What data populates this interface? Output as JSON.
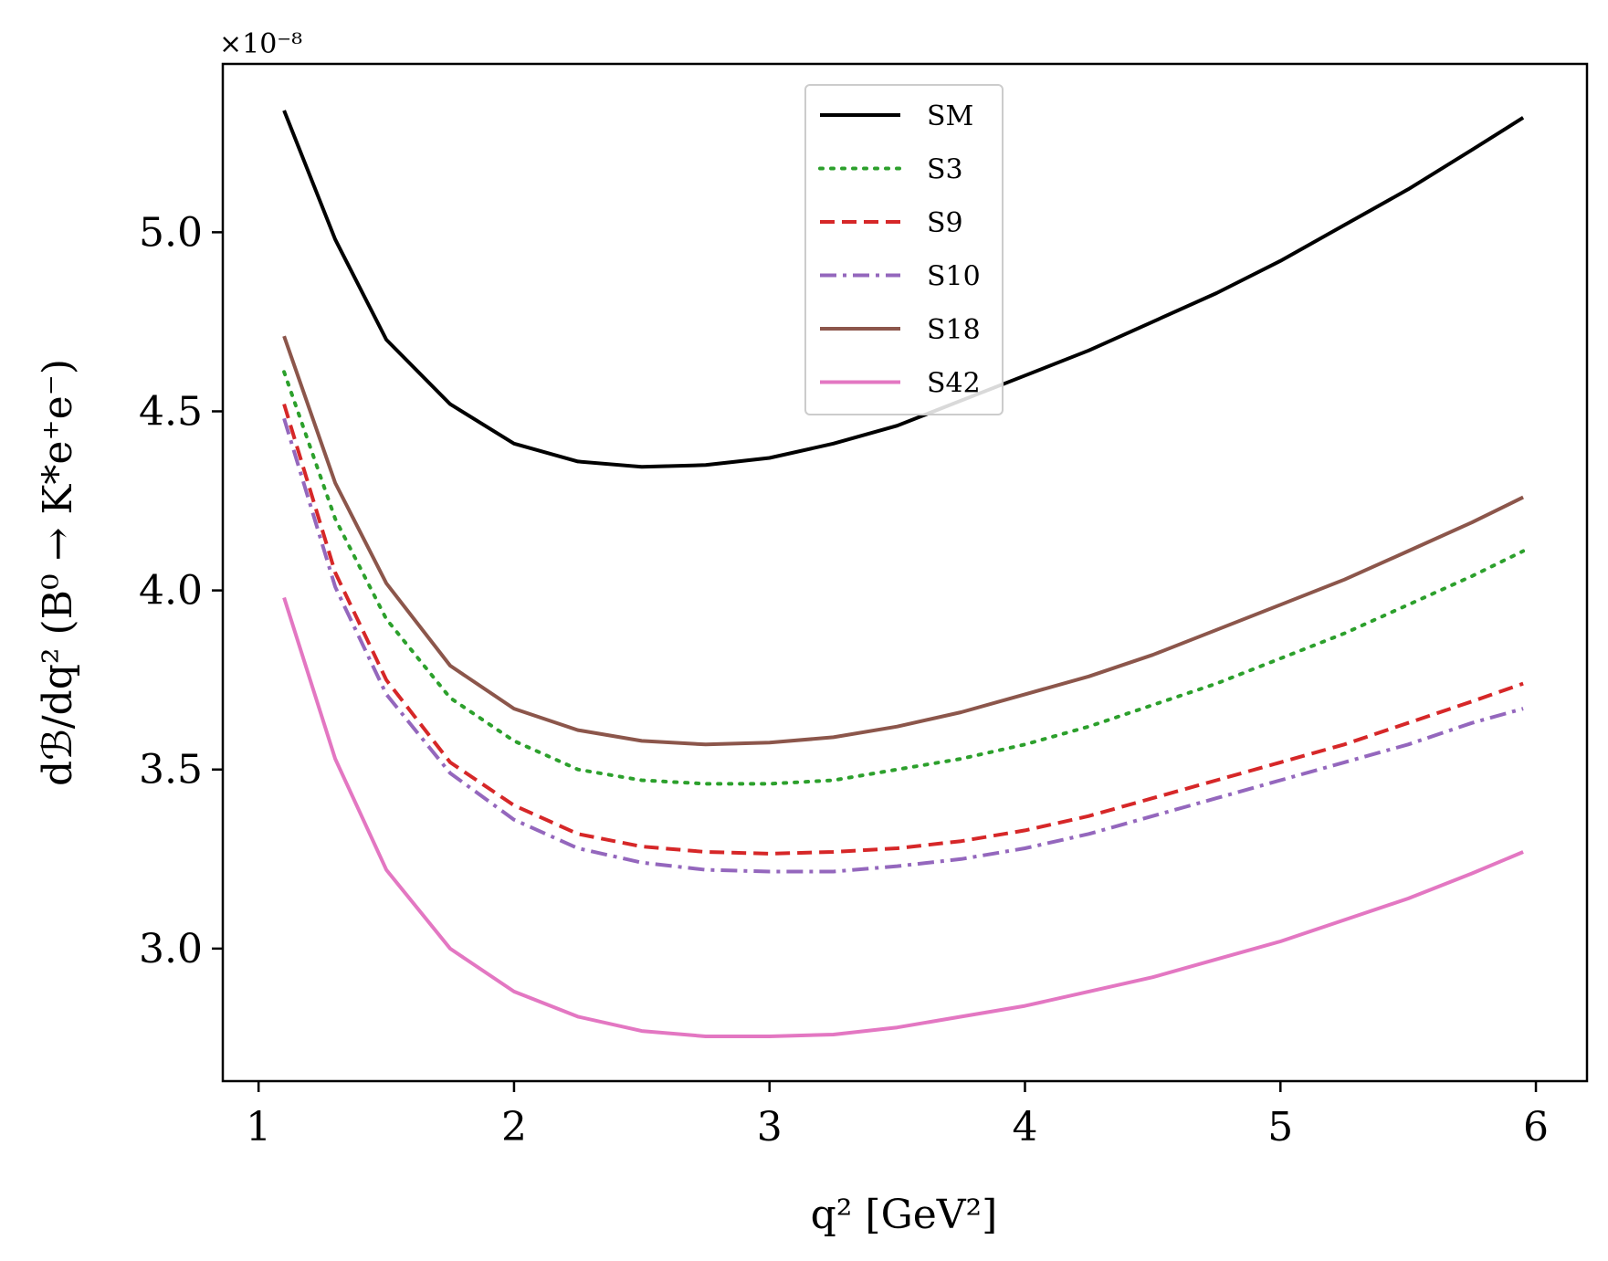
{
  "chart_data": {
    "type": "line",
    "title": "",
    "xlabel": "q² [GeV²]",
    "ylabel": "dℬ/dq² (B⁰ → K*e⁺e⁻)",
    "y_offset_label": "×10⁻⁸",
    "xlim": [
      0.86,
      6.2
    ],
    "ylim": [
      2.63,
      5.47
    ],
    "x_ticks": [
      1,
      2,
      3,
      4,
      5,
      6
    ],
    "x_tick_labels": [
      "1",
      "2",
      "3",
      "4",
      "5",
      "6"
    ],
    "y_ticks": [
      3.0,
      3.5,
      4.0,
      4.5,
      5.0
    ],
    "y_tick_labels": [
      "3.0",
      "3.5",
      "4.0",
      "4.5",
      "5.0"
    ],
    "grid": false,
    "legend_position": "top-center",
    "x": [
      1.1,
      1.3,
      1.5,
      1.75,
      2.0,
      2.25,
      2.5,
      2.75,
      3.0,
      3.25,
      3.5,
      3.75,
      4.0,
      4.25,
      4.5,
      4.75,
      5.0,
      5.25,
      5.5,
      5.75,
      5.95
    ],
    "series": [
      {
        "name": "SM",
        "color": "#000000",
        "dash": "solid",
        "values": [
          5.34,
          4.98,
          4.7,
          4.52,
          4.41,
          4.36,
          4.345,
          4.35,
          4.37,
          4.41,
          4.46,
          4.53,
          4.6,
          4.67,
          4.75,
          4.83,
          4.92,
          5.02,
          5.12,
          5.23,
          5.32
        ]
      },
      {
        "name": "S3",
        "color": "#2ca02c",
        "dash": "dotted",
        "values": [
          4.61,
          4.2,
          3.92,
          3.7,
          3.58,
          3.5,
          3.47,
          3.46,
          3.46,
          3.47,
          3.5,
          3.53,
          3.57,
          3.62,
          3.68,
          3.74,
          3.81,
          3.88,
          3.96,
          4.04,
          4.11
        ]
      },
      {
        "name": "S9",
        "color": "#d62728",
        "dash": "dashed",
        "values": [
          4.52,
          4.05,
          3.75,
          3.52,
          3.4,
          3.32,
          3.285,
          3.27,
          3.265,
          3.27,
          3.28,
          3.3,
          3.33,
          3.37,
          3.42,
          3.47,
          3.52,
          3.57,
          3.63,
          3.69,
          3.74
        ]
      },
      {
        "name": "S10",
        "color": "#9467bd",
        "dash": "dashdot",
        "values": [
          4.48,
          4.01,
          3.71,
          3.49,
          3.36,
          3.28,
          3.24,
          3.22,
          3.215,
          3.215,
          3.23,
          3.25,
          3.28,
          3.32,
          3.37,
          3.42,
          3.47,
          3.52,
          3.57,
          3.63,
          3.67
        ]
      },
      {
        "name": "S18",
        "color": "#8c564b",
        "dash": "solid",
        "values": [
          4.71,
          4.3,
          4.02,
          3.79,
          3.67,
          3.61,
          3.58,
          3.57,
          3.575,
          3.59,
          3.62,
          3.66,
          3.71,
          3.76,
          3.82,
          3.89,
          3.96,
          4.03,
          4.11,
          4.19,
          4.26
        ]
      },
      {
        "name": "S42",
        "color": "#e377c2",
        "dash": "solid",
        "values": [
          3.98,
          3.53,
          3.22,
          3.0,
          2.88,
          2.81,
          2.77,
          2.755,
          2.755,
          2.76,
          2.78,
          2.81,
          2.84,
          2.88,
          2.92,
          2.97,
          3.02,
          3.08,
          3.14,
          3.21,
          3.27
        ]
      }
    ]
  }
}
